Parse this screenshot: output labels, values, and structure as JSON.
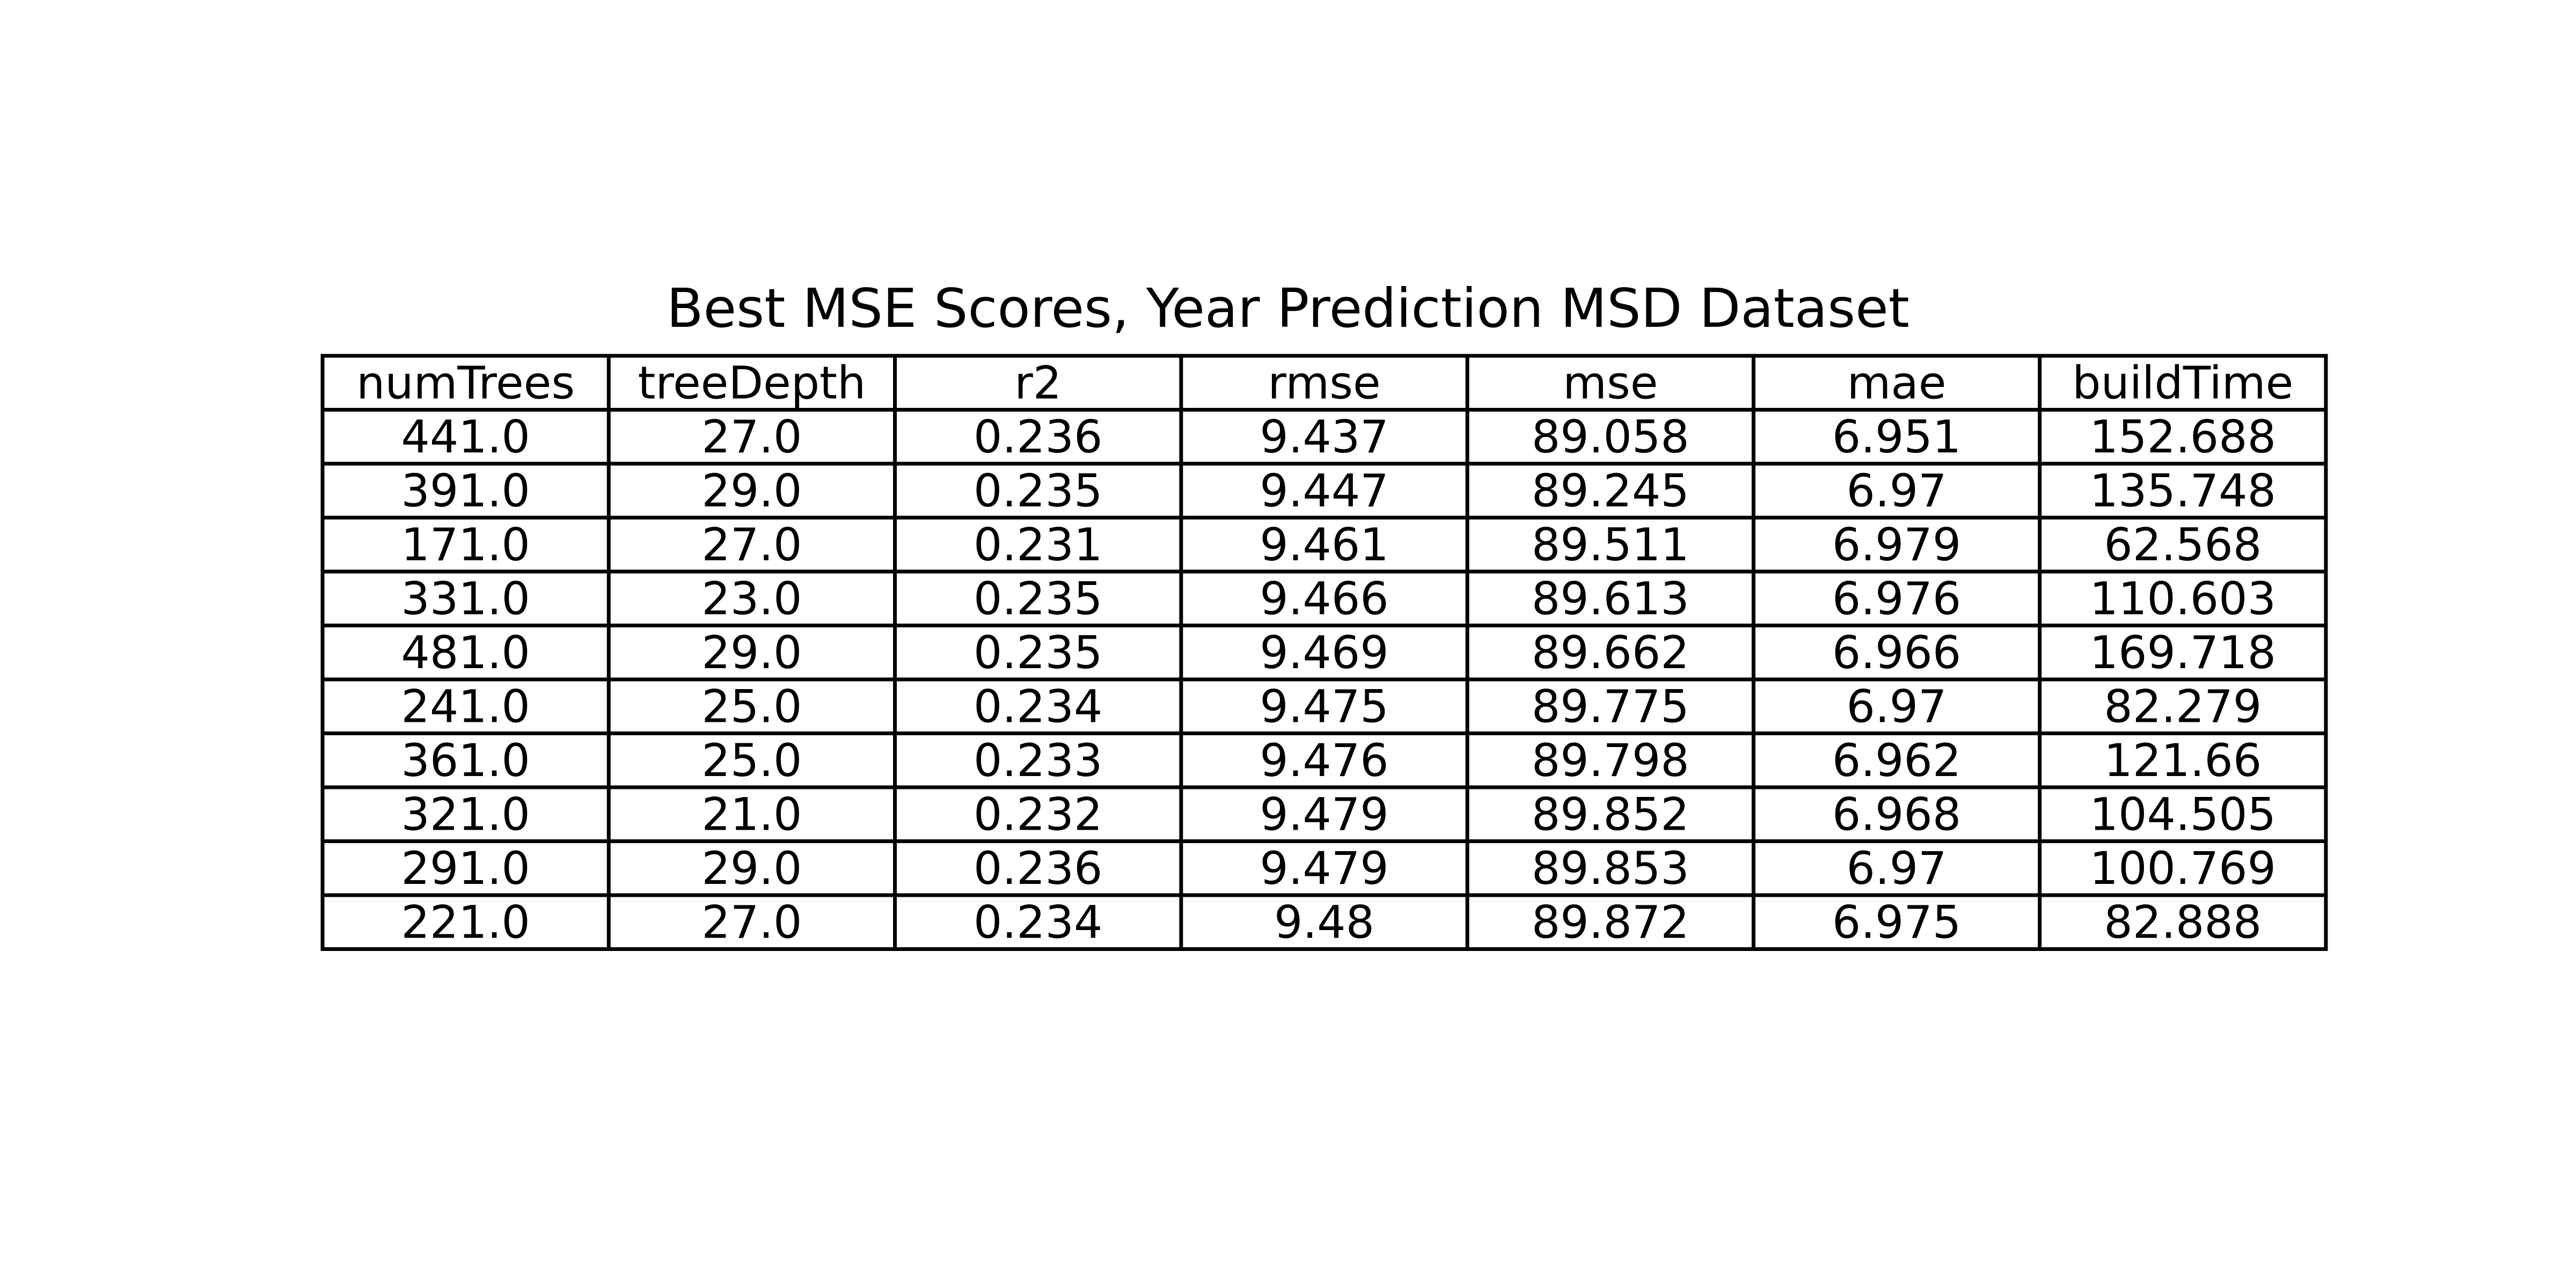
{
  "chart_data": {
    "type": "table",
    "title": "Best MSE Scores, Year Prediction MSD Dataset",
    "columns": [
      "numTrees",
      "treeDepth",
      "r2",
      "rmse",
      "mse",
      "mae",
      "buildTime"
    ],
    "rows": [
      [
        "441.0",
        "27.0",
        "0.236",
        "9.437",
        "89.058",
        "6.951",
        "152.688"
      ],
      [
        "391.0",
        "29.0",
        "0.235",
        "9.447",
        "89.245",
        "6.97",
        "135.748"
      ],
      [
        "171.0",
        "27.0",
        "0.231",
        "9.461",
        "89.511",
        "6.979",
        "62.568"
      ],
      [
        "331.0",
        "23.0",
        "0.235",
        "9.466",
        "89.613",
        "6.976",
        "110.603"
      ],
      [
        "481.0",
        "29.0",
        "0.235",
        "9.469",
        "89.662",
        "6.966",
        "169.718"
      ],
      [
        "241.0",
        "25.0",
        "0.234",
        "9.475",
        "89.775",
        "6.97",
        "82.279"
      ],
      [
        "361.0",
        "25.0",
        "0.233",
        "9.476",
        "89.798",
        "6.962",
        "121.66"
      ],
      [
        "321.0",
        "21.0",
        "0.232",
        "9.479",
        "89.852",
        "6.968",
        "104.505"
      ],
      [
        "291.0",
        "29.0",
        "0.236",
        "9.479",
        "89.853",
        "6.97",
        "100.769"
      ],
      [
        "221.0",
        "27.0",
        "0.234",
        "9.48",
        "89.872",
        "6.975",
        "82.888"
      ]
    ],
    "colors": {
      "background": "#ffffff",
      "grid_line": "#000000",
      "text": "#000000"
    }
  }
}
